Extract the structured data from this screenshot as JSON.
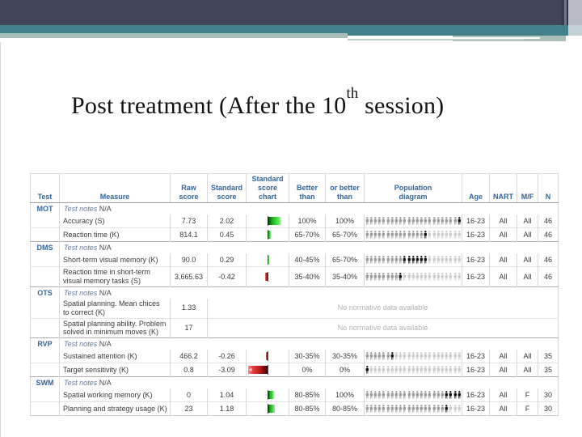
{
  "title": {
    "text_main": "Post treatment (After the 10",
    "superscript": "th",
    "text_end": " session)"
  },
  "theme_colors": {
    "banner_dark": "#43465a",
    "banner_teal": "#43808a",
    "banner_sage": "#a9bfba",
    "banner_light_gray": "#b9bbc5",
    "header_blue": "#31659c",
    "bar_green": "#2bc42b",
    "bar_red": "#cf1f1f"
  },
  "table": {
    "headers": [
      "Test",
      "Measure",
      "Raw\nscore",
      "Standard\nscore",
      "Standard\nscore chart",
      "Better\nthan",
      "or better\nthan",
      "Population\ndiagram",
      "Age",
      "NART",
      "M/F",
      "N"
    ],
    "notes_label": "Test notes",
    "no_data_text": "No normative data available",
    "offscale_marker": "«",
    "person_icon": "person-icon",
    "groups": [
      {
        "test": "MOT",
        "notes": "N/A",
        "rows": [
          {
            "measure": "Accuracy (S)",
            "raw": "7.73",
            "standard": "2.02",
            "bar": 2.02,
            "offscale": false,
            "better": "100%",
            "or_better": "100%",
            "pop": {
              "total": 23,
              "black_from": 23,
              "black_to": 23
            },
            "age": "16-23",
            "nart": "All",
            "mf": "All",
            "n": "46"
          },
          {
            "measure": "Reaction time (K)",
            "raw": "814.1",
            "standard": "0.45",
            "bar": 0.45,
            "offscale": false,
            "better": "65-70%",
            "or_better": "65-70%",
            "pop": {
              "total": 23,
              "black_from": 15,
              "black_to": 15
            },
            "age": "16-23",
            "nart": "All",
            "mf": "All",
            "n": "46"
          }
        ]
      },
      {
        "test": "DMS",
        "notes": "N/A",
        "rows": [
          {
            "measure": "Short-term visual memory (K)",
            "raw": "90.0",
            "standard": "0.29",
            "bar": 0.29,
            "offscale": false,
            "better": "40-45%",
            "or_better": "65-70%",
            "pop": {
              "total": 23,
              "black_from": 10,
              "black_to": 15
            },
            "age": "16-23",
            "nart": "All",
            "mf": "All",
            "n": "46"
          },
          {
            "measure": "Reaction time in short-term visual memory tasks (S)",
            "raw": "3,665.63",
            "standard": "-0.42",
            "bar": -0.42,
            "offscale": false,
            "better": "35-40%",
            "or_better": "35-40%",
            "pop": {
              "total": 23,
              "black_from": 9,
              "black_to": 9
            },
            "age": "16-23",
            "nart": "All",
            "mf": "All",
            "n": "46"
          }
        ]
      },
      {
        "test": "OTS",
        "notes": "N/A",
        "rows": [
          {
            "measure": "Spatial planning. Mean chices to correct (K)",
            "raw": "1.33",
            "no_data": true
          },
          {
            "measure": "Spatial planning ability. Problem solved in minimum moves (K)",
            "raw": "17",
            "no_data": true
          }
        ]
      },
      {
        "test": "RVP",
        "notes": "N/A",
        "rows": [
          {
            "measure": "Sustained attention (K)",
            "raw": "466.2",
            "standard": "-0.26",
            "bar": -0.26,
            "offscale": false,
            "better": "30-35%",
            "or_better": "30-35%",
            "pop": {
              "total": 23,
              "black_from": 7,
              "black_to": 7
            },
            "age": "16-23",
            "nart": "All",
            "mf": "All",
            "n": "35"
          },
          {
            "measure": "Target sensitivity (K)",
            "raw": "0.8",
            "standard": "-3.09",
            "bar": -3.09,
            "offscale": true,
            "better": "0%",
            "or_better": "0%",
            "pop": {
              "total": 23,
              "black_from": 1,
              "black_to": 1
            },
            "age": "16-23",
            "nart": "All",
            "mf": "All",
            "n": "35"
          }
        ]
      },
      {
        "test": "SWM",
        "notes": "N/A",
        "rows": [
          {
            "measure": "Spatial working memory (K)",
            "raw": "0",
            "standard": "1.04",
            "bar": 1.04,
            "offscale": false,
            "better": "80-85%",
            "or_better": "100%",
            "pop": {
              "total": 23,
              "black_from": 20,
              "black_to": 23
            },
            "age": "16-23",
            "nart": "All",
            "mf": "F",
            "n": "30"
          },
          {
            "measure": "Planning and strategy usage (K)",
            "raw": "23",
            "standard": "1.18",
            "bar": 1.18,
            "offscale": false,
            "better": "80-85%",
            "or_better": "80-85%",
            "pop": {
              "total": 23,
              "black_from": 20,
              "black_to": 20
            },
            "age": "16-23",
            "nart": "All",
            "mf": "F",
            "n": "30"
          }
        ]
      }
    ]
  }
}
